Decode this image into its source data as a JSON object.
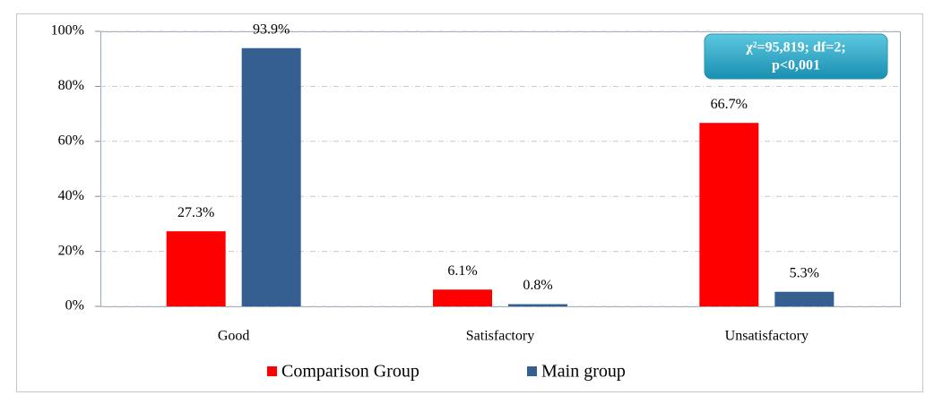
{
  "chart_data": {
    "type": "bar",
    "categories": [
      "Good",
      "Satisfactory",
      "Unsatisfactory"
    ],
    "series": [
      {
        "name": "Comparison Group",
        "color": "#ff0000",
        "values": [
          27.3,
          6.1,
          66.7
        ],
        "value_labels": [
          "27.3%",
          "6.1%",
          "66.7%"
        ]
      },
      {
        "name": "Main group",
        "color": "#355f91",
        "values": [
          93.9,
          0.8,
          5.3
        ],
        "value_labels": [
          "93.9%",
          "0.8%",
          "5.3%"
        ]
      }
    ],
    "ylim": [
      0,
      100
    ],
    "yticks": [
      {
        "value": 0,
        "label": "0%"
      },
      {
        "value": 20,
        "label": "20%"
      },
      {
        "value": 40,
        "label": "40%"
      },
      {
        "value": 60,
        "label": "60%"
      },
      {
        "value": 80,
        "label": "80%"
      },
      {
        "value": 100,
        "label": "100%"
      }
    ],
    "grid": true,
    "legend": "bottom",
    "annotation": [
      "χ²=95,819; df=2;",
      "p<0,001"
    ]
  }
}
